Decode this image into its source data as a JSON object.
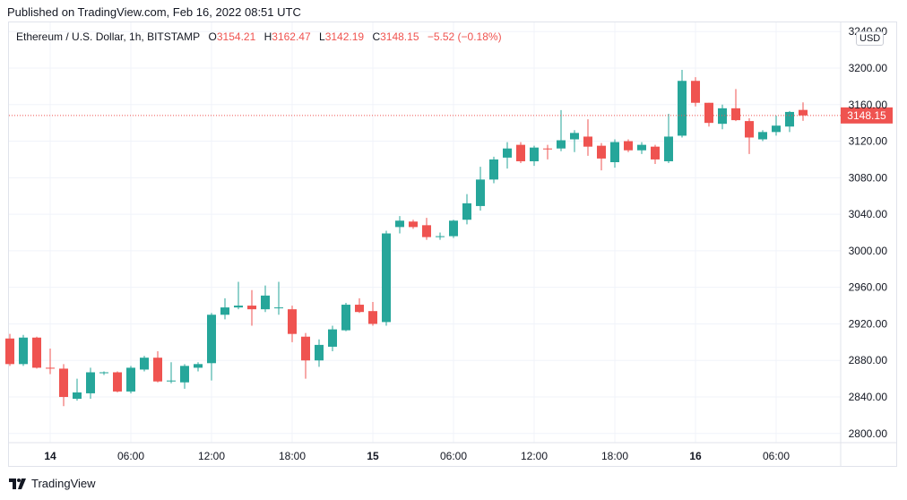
{
  "header": {
    "published": "Published on TradingView.com, Feb 16, 2022 08:51 UTC"
  },
  "legend": {
    "symbol": "Ethereum / U.S. Dollar, 1h, BITSTAMP",
    "o_label": "O",
    "o": "3154.21",
    "h_label": "H",
    "h": "3162.47",
    "l_label": "L",
    "l": "3142.19",
    "c_label": "C",
    "c": "3148.15",
    "change": "−5.52 (−0.18%)"
  },
  "currency": "USD",
  "footer": {
    "brand": "TradingView",
    "logo_icon": "tradingview-logo-icon"
  },
  "colors": {
    "up": "#26a69a",
    "down": "#ef5350",
    "grid": "#f0f3fa",
    "text": "#131722"
  },
  "chart_data": {
    "type": "candlestick",
    "ylim": [
      2790,
      3250
    ],
    "yticks": [
      2800,
      2840,
      2880,
      2920,
      2960,
      3000,
      3040,
      3080,
      3120,
      3160,
      3200,
      3240
    ],
    "ytick_labels": [
      "2800.00",
      "2840.00",
      "2880.00",
      "2920.00",
      "2960.00",
      "3000.00",
      "3040.00",
      "3080.00",
      "3120.00",
      "3160.00",
      "3200.00",
      "3240.00"
    ],
    "xticks": [
      {
        "label": "14",
        "bold": true,
        "index": 3
      },
      {
        "label": "06:00",
        "bold": false,
        "index": 9
      },
      {
        "label": "12:00",
        "bold": false,
        "index": 15
      },
      {
        "label": "18:00",
        "bold": false,
        "index": 21
      },
      {
        "label": "15",
        "bold": true,
        "index": 27
      },
      {
        "label": "06:00",
        "bold": false,
        "index": 33
      },
      {
        "label": "12:00",
        "bold": false,
        "index": 39
      },
      {
        "label": "18:00",
        "bold": false,
        "index": 45
      },
      {
        "label": "16",
        "bold": true,
        "index": 51
      },
      {
        "label": "06:00",
        "bold": false,
        "index": 57
      }
    ],
    "last_price": 3148.15,
    "last_price_label": "3148.15",
    "candles": [
      {
        "o": 2904,
        "h": 2909,
        "l": 2874,
        "c": 2876
      },
      {
        "o": 2876,
        "h": 2908,
        "l": 2874,
        "c": 2905
      },
      {
        "o": 2905,
        "h": 2906,
        "l": 2871,
        "c": 2872
      },
      {
        "o": 2872,
        "h": 2893,
        "l": 2865,
        "c": 2871
      },
      {
        "o": 2871,
        "h": 2876,
        "l": 2830,
        "c": 2840
      },
      {
        "o": 2838,
        "h": 2860,
        "l": 2836,
        "c": 2845
      },
      {
        "o": 2844,
        "h": 2872,
        "l": 2838,
        "c": 2867
      },
      {
        "o": 2867,
        "h": 2868,
        "l": 2864,
        "c": 2867
      },
      {
        "o": 2867,
        "h": 2868,
        "l": 2845,
        "c": 2846
      },
      {
        "o": 2846,
        "h": 2874,
        "l": 2844,
        "c": 2872
      },
      {
        "o": 2870,
        "h": 2885,
        "l": 2868,
        "c": 2883
      },
      {
        "o": 2883,
        "h": 2890,
        "l": 2856,
        "c": 2857
      },
      {
        "o": 2857,
        "h": 2878,
        "l": 2855,
        "c": 2858
      },
      {
        "o": 2856,
        "h": 2876,
        "l": 2849,
        "c": 2874
      },
      {
        "o": 2872,
        "h": 2878,
        "l": 2868,
        "c": 2876
      },
      {
        "o": 2877,
        "h": 2932,
        "l": 2858,
        "c": 2930
      },
      {
        "o": 2930,
        "h": 2948,
        "l": 2925,
        "c": 2938
      },
      {
        "o": 2938,
        "h": 2966,
        "l": 2936,
        "c": 2940
      },
      {
        "o": 2940,
        "h": 2957,
        "l": 2918,
        "c": 2936
      },
      {
        "o": 2936,
        "h": 2962,
        "l": 2933,
        "c": 2951
      },
      {
        "o": 2938,
        "h": 2966,
        "l": 2930,
        "c": 2938
      },
      {
        "o": 2936,
        "h": 2940,
        "l": 2900,
        "c": 2909
      },
      {
        "o": 2906,
        "h": 2910,
        "l": 2860,
        "c": 2880
      },
      {
        "o": 2880,
        "h": 2903,
        "l": 2873,
        "c": 2897
      },
      {
        "o": 2895,
        "h": 2918,
        "l": 2890,
        "c": 2914
      },
      {
        "o": 2913,
        "h": 2943,
        "l": 2912,
        "c": 2941
      },
      {
        "o": 2941,
        "h": 2948,
        "l": 2932,
        "c": 2933
      },
      {
        "o": 2934,
        "h": 2944,
        "l": 2918,
        "c": 2920
      },
      {
        "o": 2922,
        "h": 3022,
        "l": 2918,
        "c": 3019
      },
      {
        "o": 3026,
        "h": 3038,
        "l": 3019,
        "c": 3033
      },
      {
        "o": 3032,
        "h": 3034,
        "l": 3024,
        "c": 3026
      },
      {
        "o": 3028,
        "h": 3036,
        "l": 3012,
        "c": 3015
      },
      {
        "o": 3015,
        "h": 3020,
        "l": 3012,
        "c": 3016
      },
      {
        "o": 3016,
        "h": 3034,
        "l": 3014,
        "c": 3033
      },
      {
        "o": 3034,
        "h": 3062,
        "l": 3029,
        "c": 3052
      },
      {
        "o": 3049,
        "h": 3092,
        "l": 3044,
        "c": 3078
      },
      {
        "o": 3078,
        "h": 3103,
        "l": 3074,
        "c": 3100
      },
      {
        "o": 3102,
        "h": 3119,
        "l": 3090,
        "c": 3112
      },
      {
        "o": 3116,
        "h": 3119,
        "l": 3096,
        "c": 3098
      },
      {
        "o": 3098,
        "h": 3115,
        "l": 3093,
        "c": 3113
      },
      {
        "o": 3112,
        "h": 3116,
        "l": 3100,
        "c": 3111
      },
      {
        "o": 3112,
        "h": 3154,
        "l": 3109,
        "c": 3121
      },
      {
        "o": 3122,
        "h": 3132,
        "l": 3108,
        "c": 3129
      },
      {
        "o": 3125,
        "h": 3144,
        "l": 3104,
        "c": 3114
      },
      {
        "o": 3115,
        "h": 3118,
        "l": 3088,
        "c": 3101
      },
      {
        "o": 3097,
        "h": 3122,
        "l": 3091,
        "c": 3119
      },
      {
        "o": 3120,
        "h": 3122,
        "l": 3108,
        "c": 3110
      },
      {
        "o": 3110,
        "h": 3119,
        "l": 3106,
        "c": 3116
      },
      {
        "o": 3114,
        "h": 3116,
        "l": 3095,
        "c": 3100
      },
      {
        "o": 3098,
        "h": 3150,
        "l": 3096,
        "c": 3125
      },
      {
        "o": 3126,
        "h": 3198,
        "l": 3124,
        "c": 3186
      },
      {
        "o": 3186,
        "h": 3190,
        "l": 3158,
        "c": 3162
      },
      {
        "o": 3162,
        "h": 3162,
        "l": 3136,
        "c": 3140
      },
      {
        "o": 3139,
        "h": 3160,
        "l": 3133,
        "c": 3156
      },
      {
        "o": 3156,
        "h": 3177,
        "l": 3142,
        "c": 3143
      },
      {
        "o": 3142,
        "h": 3145,
        "l": 3106,
        "c": 3124
      },
      {
        "o": 3122,
        "h": 3132,
        "l": 3120,
        "c": 3130
      },
      {
        "o": 3130,
        "h": 3148,
        "l": 3126,
        "c": 3137
      },
      {
        "o": 3136,
        "h": 3153,
        "l": 3130,
        "c": 3152
      },
      {
        "o": 3154.21,
        "h": 3162.47,
        "l": 3142.19,
        "c": 3148.15
      }
    ]
  }
}
